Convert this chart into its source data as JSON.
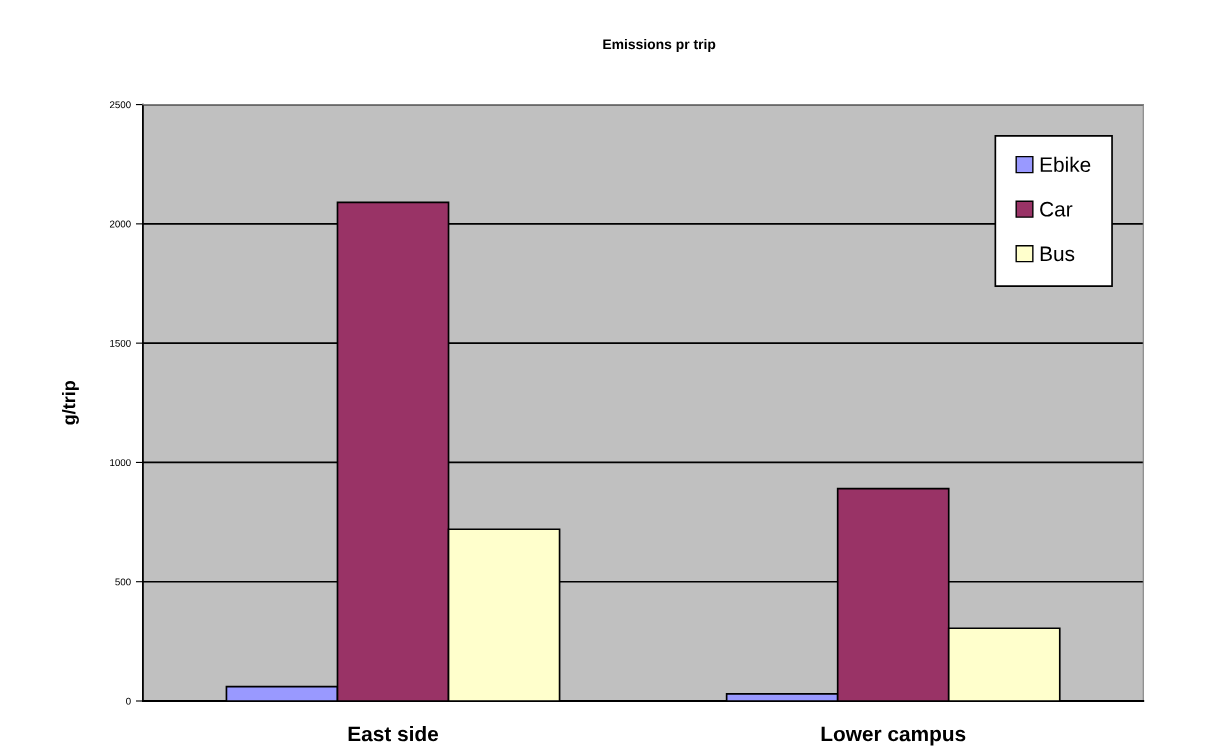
{
  "chart_data": {
    "type": "bar",
    "title": "Emissions pr trip",
    "ylabel": "g/trip",
    "categories": [
      "East side",
      "Lower campus"
    ],
    "series": [
      {
        "name": "Ebike",
        "color": "#9999ff",
        "values": [
          60,
          30
        ]
      },
      {
        "name": "Car",
        "color": "#993366",
        "values": [
          2090,
          890
        ]
      },
      {
        "name": "Bus",
        "color": "#ffffcc",
        "values": [
          720,
          305
        ]
      }
    ],
    "ylim": [
      0,
      2500
    ],
    "yticks": [
      0,
      500,
      1000,
      1500,
      2000,
      2500
    ],
    "grid": "y",
    "legend": "top right"
  }
}
